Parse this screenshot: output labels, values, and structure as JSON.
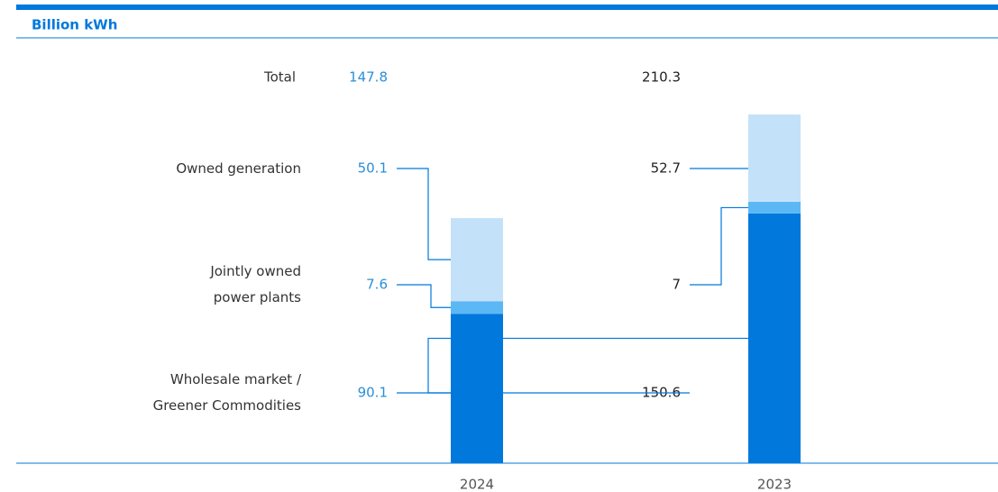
{
  "chart_data": {
    "type": "stacked-bar",
    "title": "Billion kWh",
    "categories": [
      "2024",
      "2023"
    ],
    "series": [
      {
        "name": "Wholesale market / Greener Commodities",
        "color": "#0078dc",
        "values": [
          90.1,
          150.6
        ]
      },
      {
        "name": "Jointly owned power plants",
        "color": "#5bb8f5",
        "values": [
          7.6,
          7.0
        ]
      },
      {
        "name": "Owned generation",
        "color": "#c3e2fa",
        "values": [
          50.1,
          52.7
        ]
      }
    ],
    "total_label": "Total",
    "totals": [
      147.8,
      210.3
    ],
    "value_label_colors": [
      "#2a8fd6",
      "#222222"
    ],
    "accent_color": "#0078dc"
  }
}
